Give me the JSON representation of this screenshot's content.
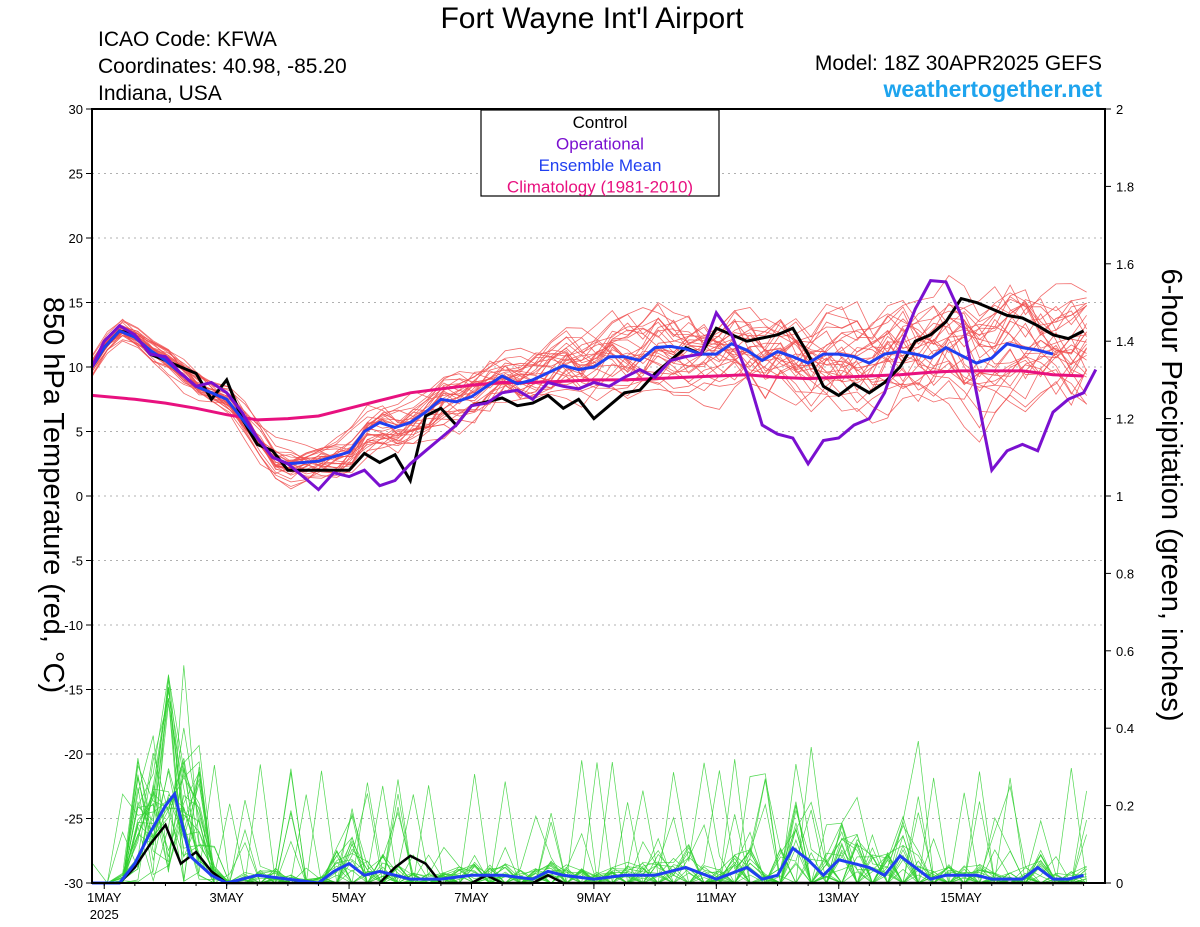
{
  "header": {
    "title": "Fort Wayne Int'l Airport",
    "icao": "ICAO Code: KFWA",
    "coords": "Coordinates: 40.98, -85.20",
    "region": "Indiana, USA",
    "model": "Model: 18Z 30APR2025 GEFS",
    "brand": "weathertogether.net"
  },
  "colors": {
    "control": "#000000",
    "operational": "#7a10d0",
    "ensemble_mean": "#1f3ff0",
    "climatology": "#e8117f",
    "members_temp": "#f05050",
    "members_precip": "#30d030"
  },
  "chart_data": {
    "type": "line",
    "title": "Fort Wayne Int'l Airport",
    "ylabel_left": "850 hPa Temperature (red, °C)",
    "ylabel_right": "6-hour Precipitation (green, inches)",
    "x_unit": "days since 1 May 2025 00Z",
    "xlim": [
      -0.2,
      16.35
    ],
    "ylim_left": [
      -30,
      30
    ],
    "ylim_right": [
      0,
      2
    ],
    "yticks_left": [
      30,
      25,
      20,
      15,
      10,
      5,
      0,
      -5,
      -10,
      -15,
      -20,
      -25,
      -30
    ],
    "yticks_right": [
      2,
      1.8,
      1.6,
      1.4,
      1.2,
      1,
      0.8,
      0.6,
      0.4,
      0.2,
      0
    ],
    "yticks_right_labels": [
      "2",
      "1.8",
      "1.6",
      "1.4",
      "1.2",
      "1",
      "0.8",
      "0.6",
      "0.4",
      "0.2",
      "0"
    ],
    "xticks": [
      {
        "x": 0,
        "label": "1MAY",
        "sub": "2025"
      },
      {
        "x": 2,
        "label": "3MAY"
      },
      {
        "x": 4,
        "label": "5MAY"
      },
      {
        "x": 6,
        "label": "7MAY"
      },
      {
        "x": 8,
        "label": "9MAY"
      },
      {
        "x": 10,
        "label": "11MAY"
      },
      {
        "x": 12,
        "label": "13MAY"
      },
      {
        "x": 14,
        "label": "15MAY"
      }
    ],
    "grid": "dotted horizontal",
    "legend_position": "top-center",
    "legend": [
      "Control",
      "Operational",
      "Ensemble Mean",
      "Climatology (1981-2010)"
    ],
    "temperature": {
      "control": [
        [
          -0.2,
          10
        ],
        [
          0,
          11.5
        ],
        [
          0.25,
          12.8
        ],
        [
          0.5,
          12.5
        ],
        [
          0.75,
          11
        ],
        [
          1,
          10.5
        ],
        [
          1.25,
          10
        ],
        [
          1.5,
          9.5
        ],
        [
          1.75,
          7.5
        ],
        [
          2,
          9
        ],
        [
          2.25,
          6
        ],
        [
          2.5,
          4
        ],
        [
          2.75,
          3.5
        ],
        [
          3,
          2
        ],
        [
          3.5,
          2
        ],
        [
          4,
          2
        ],
        [
          4.25,
          3.3
        ],
        [
          4.5,
          2.6
        ],
        [
          4.75,
          3.2
        ],
        [
          5,
          1.2
        ],
        [
          5.25,
          6.2
        ],
        [
          5.5,
          6.8
        ],
        [
          5.75,
          5.5
        ],
        [
          6,
          7
        ],
        [
          6.5,
          7.6
        ],
        [
          6.75,
          7
        ],
        [
          7,
          7.2
        ],
        [
          7.25,
          7.8
        ],
        [
          7.5,
          6.8
        ],
        [
          7.75,
          7.5
        ],
        [
          8,
          6
        ],
        [
          8.25,
          7
        ],
        [
          8.5,
          8
        ],
        [
          8.75,
          8.2
        ],
        [
          9,
          9.5
        ],
        [
          9.25,
          10.5
        ],
        [
          9.5,
          11.5
        ],
        [
          9.75,
          11
        ],
        [
          10,
          13
        ],
        [
          10.5,
          12
        ],
        [
          11,
          12.5
        ],
        [
          11.25,
          13
        ],
        [
          11.5,
          11
        ],
        [
          11.75,
          8.5
        ],
        [
          12,
          7.8
        ],
        [
          12.25,
          8.7
        ],
        [
          12.5,
          8
        ],
        [
          12.75,
          8.8
        ],
        [
          13,
          10
        ],
        [
          13.25,
          12
        ],
        [
          13.5,
          12.5
        ],
        [
          13.75,
          13.5
        ],
        [
          14,
          15.3
        ],
        [
          14.25,
          15
        ],
        [
          14.5,
          14.5
        ],
        [
          14.75,
          14
        ],
        [
          15,
          13.8
        ],
        [
          15.25,
          13.2
        ],
        [
          15.5,
          12.5
        ],
        [
          15.75,
          12.2
        ],
        [
          16,
          12.8
        ]
      ],
      "operational": [
        [
          -0.2,
          10
        ],
        [
          0,
          12
        ],
        [
          0.25,
          13.2
        ],
        [
          0.5,
          12.5
        ],
        [
          0.75,
          11
        ],
        [
          1,
          10.8
        ],
        [
          1.25,
          9.5
        ],
        [
          1.5,
          8.5
        ],
        [
          1.75,
          8.8
        ],
        [
          2,
          8
        ],
        [
          2.25,
          6.5
        ],
        [
          2.5,
          4.5
        ],
        [
          2.75,
          3
        ],
        [
          3,
          2.5
        ],
        [
          3.25,
          1.5
        ],
        [
          3.5,
          0.5
        ],
        [
          3.75,
          1.8
        ],
        [
          4,
          1.5
        ],
        [
          4.25,
          2
        ],
        [
          4.5,
          0.8
        ],
        [
          4.75,
          1.2
        ],
        [
          5,
          2.5
        ],
        [
          5.25,
          3.5
        ],
        [
          5.5,
          4.5
        ],
        [
          5.75,
          5.5
        ],
        [
          6,
          7
        ],
        [
          6.25,
          7.2
        ],
        [
          6.5,
          8
        ],
        [
          6.75,
          8.2
        ],
        [
          7,
          7.5
        ],
        [
          7.25,
          8.8
        ],
        [
          7.5,
          8.5
        ],
        [
          7.75,
          8.3
        ],
        [
          8,
          8.8
        ],
        [
          8.25,
          8.5
        ],
        [
          8.5,
          9.2
        ],
        [
          8.75,
          9.8
        ],
        [
          9,
          9.2
        ],
        [
          9.25,
          10.5
        ],
        [
          9.5,
          10.8
        ],
        [
          9.75,
          11
        ],
        [
          10,
          14.2
        ],
        [
          10.25,
          12.5
        ],
        [
          10.5,
          9.5
        ],
        [
          10.75,
          5.5
        ],
        [
          11,
          4.8
        ],
        [
          11.25,
          4.5
        ],
        [
          11.5,
          2.5
        ],
        [
          11.75,
          4.3
        ],
        [
          12,
          4.5
        ],
        [
          12.25,
          5.5
        ],
        [
          12.5,
          6
        ],
        [
          12.75,
          8
        ],
        [
          13,
          11.5
        ],
        [
          13.25,
          14.5
        ],
        [
          13.5,
          16.7
        ],
        [
          13.75,
          16.6
        ],
        [
          14,
          14
        ],
        [
          14.25,
          8
        ],
        [
          14.5,
          2
        ],
        [
          14.75,
          3.5
        ],
        [
          15,
          4
        ],
        [
          15.25,
          3.5
        ],
        [
          15.5,
          6.5
        ],
        [
          15.75,
          7.5
        ],
        [
          16,
          8
        ],
        [
          16.2,
          9.8
        ]
      ],
      "ensemble_mean": [
        [
          -0.2,
          10
        ],
        [
          0,
          11.5
        ],
        [
          0.25,
          12.8
        ],
        [
          0.5,
          12.3
        ],
        [
          0.75,
          11.3
        ],
        [
          1,
          10.5
        ],
        [
          1.25,
          9.5
        ],
        [
          1.5,
          8.5
        ],
        [
          1.75,
          8
        ],
        [
          2,
          7.5
        ],
        [
          2.25,
          6
        ],
        [
          2.5,
          4.5
        ],
        [
          2.75,
          3
        ],
        [
          3,
          2.5
        ],
        [
          3.5,
          2.7
        ],
        [
          4,
          3.4
        ],
        [
          4.25,
          5
        ],
        [
          4.5,
          5.7
        ],
        [
          4.75,
          5.3
        ],
        [
          5,
          5.7
        ],
        [
          5.25,
          6.5
        ],
        [
          5.5,
          7.5
        ],
        [
          5.75,
          7.3
        ],
        [
          6,
          7.7
        ],
        [
          6.25,
          8.5
        ],
        [
          6.5,
          9.3
        ],
        [
          6.75,
          8.7
        ],
        [
          7,
          9
        ],
        [
          7.5,
          10.1
        ],
        [
          7.75,
          9.8
        ],
        [
          8,
          10
        ],
        [
          8.25,
          10.8
        ],
        [
          8.5,
          10.8
        ],
        [
          8.75,
          10.5
        ],
        [
          9,
          11.5
        ],
        [
          9.25,
          11.6
        ],
        [
          9.5,
          11.4
        ],
        [
          9.75,
          11
        ],
        [
          10,
          11
        ],
        [
          10.25,
          11.8
        ],
        [
          10.5,
          11.3
        ],
        [
          10.75,
          10.5
        ],
        [
          11,
          11.2
        ],
        [
          11.25,
          10.8
        ],
        [
          11.5,
          10.3
        ],
        [
          11.75,
          11
        ],
        [
          12,
          11
        ],
        [
          12.25,
          10.8
        ],
        [
          12.5,
          10.3
        ],
        [
          12.75,
          11
        ],
        [
          13,
          11.2
        ],
        [
          13.25,
          11
        ],
        [
          13.5,
          10.7
        ],
        [
          13.75,
          11.5
        ],
        [
          14,
          10.9
        ],
        [
          14.25,
          10.3
        ],
        [
          14.5,
          10.7
        ],
        [
          14.75,
          11.8
        ],
        [
          15,
          11.5
        ],
        [
          15.25,
          11.3
        ],
        [
          15.5,
          11
        ]
      ],
      "climatology": [
        [
          -0.2,
          7.8
        ],
        [
          0.5,
          7.5
        ],
        [
          1,
          7.2
        ],
        [
          1.5,
          6.8
        ],
        [
          2,
          6.3
        ],
        [
          2.5,
          5.9
        ],
        [
          3,
          6
        ],
        [
          3.5,
          6.2
        ],
        [
          4,
          6.8
        ],
        [
          4.5,
          7.4
        ],
        [
          5,
          8
        ],
        [
          5.5,
          8.3
        ],
        [
          6,
          8.6
        ],
        [
          6.5,
          8.8
        ],
        [
          7,
          8.8
        ],
        [
          7.5,
          8.9
        ],
        [
          8,
          9
        ],
        [
          8.5,
          9
        ],
        [
          9,
          9.1
        ],
        [
          9.5,
          9.2
        ],
        [
          10,
          9.3
        ],
        [
          10.5,
          9.4
        ],
        [
          11,
          9.2
        ],
        [
          11.5,
          9.1
        ],
        [
          12,
          9.2
        ],
        [
          12.5,
          9.3
        ],
        [
          13,
          9.4
        ],
        [
          13.5,
          9.6
        ],
        [
          14,
          9.7
        ],
        [
          14.5,
          9.7
        ],
        [
          15,
          9.7
        ],
        [
          15.5,
          9.4
        ],
        [
          16,
          9.3
        ]
      ]
    },
    "precipitation": {
      "control": [
        [
          -0.2,
          0
        ],
        [
          0.25,
          0
        ],
        [
          0.5,
          0.04
        ],
        [
          0.75,
          0.1
        ],
        [
          1,
          0.15
        ],
        [
          1.25,
          0.05
        ],
        [
          1.5,
          0.08
        ],
        [
          1.75,
          0.03
        ],
        [
          2,
          0.0
        ],
        [
          3,
          0
        ],
        [
          4.5,
          0
        ],
        [
          4.75,
          0.04
        ],
        [
          5,
          0.07
        ],
        [
          5.25,
          0.05
        ],
        [
          5.5,
          0
        ],
        [
          6,
          0
        ],
        [
          6.25,
          0.02
        ],
        [
          6.5,
          0
        ],
        [
          7,
          0
        ],
        [
          7.25,
          0.02
        ],
        [
          7.5,
          0
        ],
        [
          15.5,
          0
        ],
        [
          16,
          0
        ]
      ],
      "ensemble_mean": [
        [
          -0.2,
          0
        ],
        [
          0.25,
          0
        ],
        [
          0.5,
          0.05
        ],
        [
          0.75,
          0.13
        ],
        [
          1,
          0.2
        ],
        [
          1.15,
          0.23
        ],
        [
          1.4,
          0.07
        ],
        [
          1.75,
          0.02
        ],
        [
          2,
          0
        ],
        [
          2.5,
          0.02
        ],
        [
          3,
          0.01
        ],
        [
          3.5,
          0.0
        ],
        [
          3.75,
          0.03
        ],
        [
          4,
          0.05
        ],
        [
          4.25,
          0.02
        ],
        [
          4.5,
          0.03
        ],
        [
          5,
          0.01
        ],
        [
          5.5,
          0.01
        ],
        [
          6,
          0.02
        ],
        [
          6.5,
          0.02
        ],
        [
          7,
          0.01
        ],
        [
          7.25,
          0.03
        ],
        [
          7.5,
          0.02
        ],
        [
          8,
          0.01
        ],
        [
          8.5,
          0.02
        ],
        [
          9,
          0.02
        ],
        [
          9.5,
          0.04
        ],
        [
          10,
          0.01
        ],
        [
          10.5,
          0.04
        ],
        [
          10.75,
          0.01
        ],
        [
          11,
          0.02
        ],
        [
          11.25,
          0.09
        ],
        [
          11.5,
          0.06
        ],
        [
          11.75,
          0.02
        ],
        [
          12,
          0.06
        ],
        [
          12.25,
          0.05
        ],
        [
          12.5,
          0.04
        ],
        [
          12.75,
          0.02
        ],
        [
          13,
          0.07
        ],
        [
          13.25,
          0.04
        ],
        [
          13.5,
          0.01
        ],
        [
          13.75,
          0.02
        ],
        [
          14,
          0.02
        ],
        [
          14.25,
          0.02
        ],
        [
          14.5,
          0.01
        ],
        [
          15,
          0.01
        ],
        [
          15.25,
          0.04
        ],
        [
          15.5,
          0.01
        ],
        [
          15.75,
          0.01
        ],
        [
          16,
          0.02
        ]
      ]
    }
  }
}
